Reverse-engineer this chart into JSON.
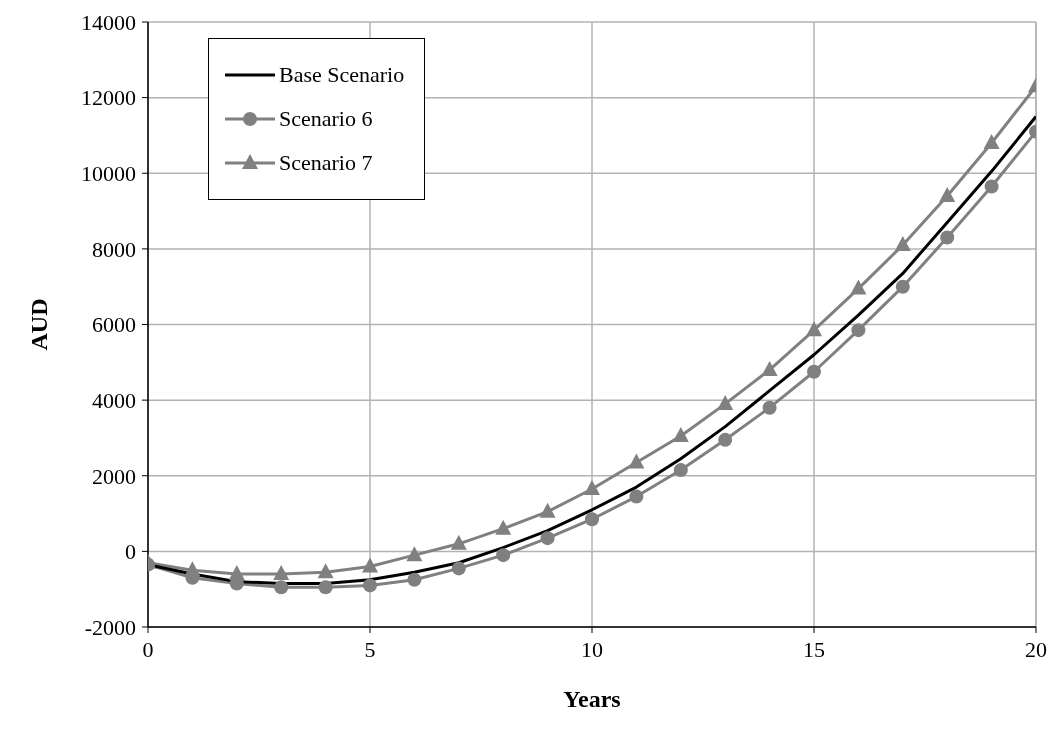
{
  "chart_data": {
    "type": "line",
    "xlabel": "Years",
    "ylabel": "AUD",
    "x": [
      0,
      1,
      2,
      3,
      4,
      5,
      6,
      7,
      8,
      9,
      10,
      11,
      12,
      13,
      14,
      15,
      16,
      17,
      18,
      19,
      20
    ],
    "xlim": [
      0,
      20
    ],
    "xticks": [
      0,
      5,
      10,
      15,
      20
    ],
    "ylim": [
      -2000,
      14000
    ],
    "yticks": [
      -2000,
      0,
      2000,
      4000,
      6000,
      8000,
      10000,
      12000,
      14000
    ],
    "grid": true,
    "legend": "top left",
    "line_style": "solid",
    "series": [
      {
        "name": "Base Scenario",
        "color": "#000000",
        "marker": "none",
        "values": [
          -350,
          -600,
          -800,
          -850,
          -850,
          -750,
          -550,
          -300,
          100,
          550,
          1100,
          1700,
          2450,
          3300,
          4250,
          5200,
          6250,
          7350,
          8700,
          10050,
          11500
        ]
      },
      {
        "name": "Scenario 6",
        "color": "#808080",
        "marker": "circle",
        "values": [
          -350,
          -700,
          -850,
          -950,
          -950,
          -900,
          -750,
          -450,
          -100,
          350,
          850,
          1450,
          2150,
          2950,
          3800,
          4750,
          5850,
          7000,
          8300,
          9650,
          11100
        ]
      },
      {
        "name": "Scenario 7",
        "color": "#808080",
        "marker": "triangle",
        "values": [
          -300,
          -500,
          -600,
          -600,
          -550,
          -400,
          -100,
          200,
          600,
          1050,
          1650,
          2350,
          3050,
          3900,
          4800,
          5850,
          6950,
          8100,
          9400,
          10800,
          12300
        ]
      }
    ]
  }
}
